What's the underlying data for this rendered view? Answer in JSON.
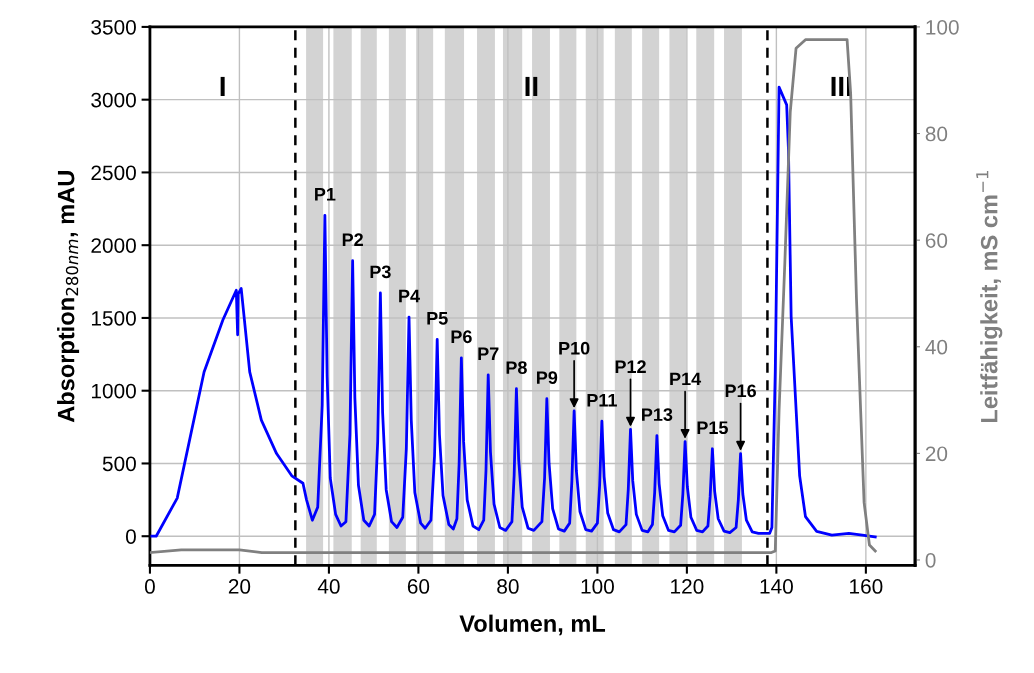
{
  "chart_data": {
    "type": "line",
    "xlabel": "Volumen, mL",
    "ylabel": "Absorption$_{280nm}$, mAU",
    "y2label": "Leitfähigkeit, mS cm$^{−1}$",
    "xlim": [
      0,
      171
    ],
    "xticks": [
      0,
      20,
      40,
      60,
      80,
      100,
      120,
      140,
      160
    ],
    "ylim": [
      -200,
      3500
    ],
    "yticks": [
      0,
      500,
      1000,
      1500,
      2000,
      2500,
      3000,
      3500
    ],
    "y2lim": [
      -1,
      100
    ],
    "y2ticks": [
      0,
      20,
      40,
      60,
      80,
      100
    ],
    "grid": true,
    "legend": false,
    "line_style": "solid",
    "marker": "none",
    "series": [
      {
        "color": "#0000ff",
        "x": [
          0,
          1.4,
          6.1,
          12.1,
          16.3,
          19.3,
          19.6,
          19.7,
          20.4,
          22.3,
          24.9,
          28.3,
          31.7,
          34.2,
          35.0,
          36.3,
          37.5,
          38.5,
          39.1,
          39.6,
          40.3,
          41.5,
          42.7,
          43.8,
          44.7,
          45.3,
          45.8,
          46.6,
          47.8,
          49.0,
          50.2,
          50.9,
          51.5,
          52.0,
          52.8,
          54.0,
          55.2,
          56.5,
          57.3,
          57.9,
          58.4,
          59.2,
          60.5,
          61.5,
          62.8,
          63.6,
          64.2,
          64.7,
          65.5,
          66.8,
          67.8,
          68.6,
          69.1,
          69.6,
          70.1,
          70.9,
          72.2,
          73.5,
          74.6,
          75.1,
          75.6,
          76.1,
          76.9,
          78.2,
          79.5,
          80.9,
          81.4,
          81.9,
          82.4,
          83.2,
          84.5,
          85.8,
          87.6,
          88.2,
          88.7,
          89.2,
          90.0,
          91.3,
          92.6,
          93.8,
          94.3,
          94.8,
          95.3,
          96.1,
          97.4,
          98.7,
          100.0,
          100.5,
          101.0,
          101.5,
          102.3,
          103.6,
          104.9,
          106.4,
          106.9,
          107.4,
          107.9,
          108.7,
          110.0,
          111.3,
          112.3,
          112.8,
          113.3,
          113.8,
          114.6,
          115.9,
          117.2,
          118.6,
          119.1,
          119.6,
          120.1,
          120.9,
          122.2,
          123.5,
          124.7,
          125.2,
          125.7,
          126.2,
          127.0,
          128.3,
          129.6,
          131.0,
          131.5,
          132.0,
          132.5,
          133.3,
          134.6,
          136.0,
          138.5,
          139.0,
          139.75,
          140.6,
          142.3,
          142.7,
          143.3,
          144.4,
          145.2,
          146.5,
          149.0,
          152.4,
          156.2,
          159.2,
          162.1
        ],
        "values": [
          0,
          0,
          262,
          1129,
          1486,
          1690,
          1384,
          1664,
          1702,
          1129,
          798,
          568,
          415,
          364,
          250,
          110,
          200,
          900,
          2205,
          1100,
          400,
          150,
          70,
          100,
          700,
          1893,
          950,
          350,
          110,
          70,
          150,
          650,
          1672,
          850,
          320,
          100,
          60,
          130,
          600,
          1506,
          800,
          300,
          90,
          55,
          110,
          550,
          1353,
          700,
          280,
          80,
          50,
          120,
          500,
          1226,
          650,
          250,
          70,
          45,
          110,
          450,
          1109,
          580,
          220,
          60,
          40,
          100,
          420,
          1014,
          530,
          200,
          55,
          40,
          100,
          400,
          945,
          500,
          190,
          50,
          35,
          90,
          380,
          861,
          450,
          170,
          45,
          35,
          90,
          350,
          790,
          410,
          160,
          45,
          30,
          80,
          320,
          734,
          380,
          150,
          40,
          30,
          80,
          300,
          691,
          360,
          140,
          40,
          30,
          75,
          290,
          650,
          340,
          130,
          40,
          30,
          70,
          270,
          601,
          310,
          120,
          35,
          25,
          60,
          250,
          568,
          290,
          110,
          30,
          20,
          20,
          60,
          1130,
          3086,
          2964,
          2658,
          1511,
          874,
          415,
          135,
          33,
          8,
          20,
          8,
          -5
        ]
      },
      {
        "color": "#808080",
        "axis": "y2",
        "x": [
          0,
          7,
          20,
          25,
          138.9,
          139.75,
          140.6,
          141.9,
          143.1,
          144.4,
          146.5,
          155.8,
          156.6,
          157.9,
          159.6,
          160.8,
          162.1
        ],
        "values": [
          1.4,
          1.9,
          1.9,
          1.4,
          1.4,
          1.7,
          28,
          56,
          84,
          96,
          97.6,
          97.6,
          87.5,
          49,
          10.8,
          2.8,
          1.7
        ]
      }
    ],
    "ref_lines": [
      {
        "axis": "x",
        "value": 32.5,
        "color": "#000000",
        "line_style": "dashed"
      },
      {
        "axis": "x",
        "value": 138,
        "color": "#000000",
        "line_style": "dashed"
      }
    ],
    "bands": [
      {
        "axis": "x",
        "from": 34.9,
        "to": 38.7,
        "color": "#d3d3d3"
      },
      {
        "axis": "x",
        "from": 41.0,
        "to": 45.1,
        "color": "#d3d3d3"
      },
      {
        "axis": "x",
        "from": 47.1,
        "to": 50.7,
        "color": "#d3d3d3"
      },
      {
        "axis": "x",
        "from": 53.4,
        "to": 57.2,
        "color": "#d3d3d3"
      },
      {
        "axis": "x",
        "from": 59.5,
        "to": 63.3,
        "color": "#d3d3d3"
      },
      {
        "axis": "x",
        "from": 65.9,
        "to": 70.2,
        "color": "#d3d3d3"
      },
      {
        "axis": "x",
        "from": 73.1,
        "to": 77.1,
        "color": "#d3d3d3"
      },
      {
        "axis": "x",
        "from": 78.9,
        "to": 83.2,
        "color": "#d3d3d3"
      },
      {
        "axis": "x",
        "from": 85.4,
        "to": 89.4,
        "color": "#d3d3d3"
      },
      {
        "axis": "x",
        "from": 91.5,
        "to": 95.3,
        "color": "#d3d3d3"
      },
      {
        "axis": "x",
        "from": 97.4,
        "to": 101.4,
        "color": "#d3d3d3"
      },
      {
        "axis": "x",
        "from": 103.9,
        "to": 107.7,
        "color": "#d3d3d3"
      },
      {
        "axis": "x",
        "from": 110.0,
        "to": 113.8,
        "color": "#d3d3d3"
      },
      {
        "axis": "x",
        "from": 116.1,
        "to": 119.9,
        "color": "#d3d3d3"
      },
      {
        "axis": "x",
        "from": 122.1,
        "to": 126.1,
        "color": "#d3d3d3"
      },
      {
        "axis": "x",
        "from": 128.3,
        "to": 132.3,
        "color": "#d3d3d3"
      }
    ],
    "annotations": [
      "I",
      "II",
      "III",
      {
        "text": "P1",
        "x": 39.1,
        "y": 2205
      },
      {
        "text": "P2",
        "x": 45.3,
        "y": 1893
      },
      {
        "text": "P3",
        "x": 51.5,
        "y": 1672
      },
      {
        "text": "P4",
        "x": 57.9,
        "y": 1506
      },
      {
        "text": "P5",
        "x": 64.2,
        "y": 1353
      },
      {
        "text": "P6",
        "x": 69.6,
        "y": 1226
      },
      {
        "text": "P7",
        "x": 75.6,
        "y": 1109
      },
      {
        "text": "P8",
        "x": 81.9,
        "y": 1014
      },
      {
        "text": "P9",
        "x": 88.7,
        "y": 945
      },
      {
        "text": "P10",
        "x": 94.8,
        "y": 861
      },
      {
        "text": "P11",
        "x": 101.0,
        "y": 790
      },
      {
        "text": "P12",
        "x": 107.4,
        "y": 734
      },
      {
        "text": "P13",
        "x": 113.3,
        "y": 691
      },
      {
        "text": "P14",
        "x": 119.6,
        "y": 650
      },
      {
        "text": "P15",
        "x": 125.7,
        "y": 601
      },
      {
        "text": "P16",
        "x": 132.0,
        "y": 568
      }
    ]
  }
}
